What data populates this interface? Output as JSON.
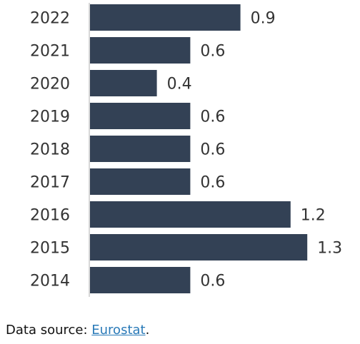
{
  "chart_data": {
    "type": "bar",
    "orientation": "horizontal",
    "categories": [
      "2022",
      "2021",
      "2020",
      "2019",
      "2018",
      "2017",
      "2016",
      "2015",
      "2014"
    ],
    "values": [
      0.9,
      0.6,
      0.4,
      0.6,
      0.6,
      0.6,
      1.2,
      1.3,
      0.6
    ],
    "value_labels": [
      "0.9",
      "0.6",
      "0.4",
      "0.6",
      "0.6",
      "0.6",
      "1.2",
      "1.3",
      "0.6"
    ],
    "title": "",
    "xlabel": "",
    "ylabel": "",
    "xlim": [
      0,
      1.4
    ],
    "grid": false,
    "bar_color": "#334155"
  },
  "source": {
    "prefix": "Data source: ",
    "link_text": "Eurostat",
    "suffix": "."
  },
  "colors": {
    "bar": "#334155",
    "axis": "#cccccc",
    "link": "#2a7ab8"
  }
}
